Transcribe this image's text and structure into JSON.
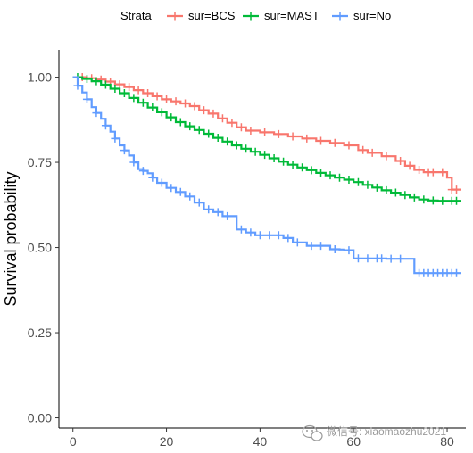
{
  "legend": {
    "title": "Strata"
  },
  "watermark": {
    "text": "微信号: xiaomaozhu2021",
    "icon": "wechat-bubble-icon"
  },
  "chart_data": {
    "type": "line",
    "step": true,
    "title": "",
    "xlabel": "",
    "ylabel": "Survival probability",
    "xlim": [
      -3,
      84
    ],
    "ylim": [
      -0.03,
      1.08
    ],
    "x_ticks": [
      0,
      20,
      40,
      60,
      80
    ],
    "y_ticks": [
      0.0,
      0.25,
      0.5,
      0.75,
      1.0
    ],
    "x_tick_labels": [
      "0",
      "20",
      "40",
      "60",
      "80"
    ],
    "y_tick_labels": [
      "0.00",
      "0.25",
      "0.50",
      "0.75",
      "1.00"
    ],
    "grid": false,
    "legend_position": "top",
    "censor_marks": true,
    "series": [
      {
        "name": "sur=BCS",
        "color": "#F8766D",
        "x": [
          0,
          3,
          5,
          7,
          9,
          11,
          13,
          15,
          17,
          19,
          21,
          23,
          25,
          27,
          29,
          31,
          33,
          35,
          37,
          40,
          43,
          46,
          49,
          52,
          55,
          58,
          61,
          63,
          66,
          69,
          71,
          73,
          75,
          78,
          80,
          81,
          83
        ],
        "y": [
          1.0,
          0.997,
          0.993,
          0.987,
          0.979,
          0.971,
          0.962,
          0.953,
          0.944,
          0.935,
          0.929,
          0.923,
          0.915,
          0.903,
          0.893,
          0.879,
          0.866,
          0.853,
          0.843,
          0.838,
          0.833,
          0.826,
          0.82,
          0.813,
          0.807,
          0.8,
          0.786,
          0.778,
          0.768,
          0.754,
          0.74,
          0.728,
          0.721,
          0.721,
          0.705,
          0.67,
          0.67
        ],
        "censor_x": [
          2,
          4,
          6,
          8,
          10,
          12,
          14,
          16,
          18,
          20,
          22,
          24,
          26,
          28,
          30,
          32,
          34,
          36,
          38,
          41,
          44,
          47,
          50,
          53,
          56,
          59,
          62,
          64,
          67,
          70,
          72,
          74,
          76,
          77,
          79,
          81,
          82
        ]
      },
      {
        "name": "sur=MAST",
        "color": "#00BA38",
        "x": [
          0,
          2,
          4,
          6,
          8,
          10,
          12,
          14,
          16,
          18,
          20,
          22,
          24,
          26,
          28,
          30,
          32,
          34,
          36,
          38,
          40,
          42,
          44,
          46,
          48,
          50,
          52,
          54,
          56,
          58,
          60,
          62,
          64,
          66,
          68,
          70,
          72,
          74,
          76,
          78,
          80,
          83
        ],
        "y": [
          1.0,
          0.995,
          0.988,
          0.978,
          0.966,
          0.953,
          0.939,
          0.925,
          0.911,
          0.897,
          0.882,
          0.868,
          0.856,
          0.845,
          0.834,
          0.822,
          0.811,
          0.8,
          0.79,
          0.781,
          0.772,
          0.762,
          0.752,
          0.743,
          0.735,
          0.727,
          0.719,
          0.712,
          0.705,
          0.699,
          0.692,
          0.684,
          0.676,
          0.668,
          0.661,
          0.654,
          0.647,
          0.641,
          0.638,
          0.637,
          0.637,
          0.637
        ],
        "censor_x": [
          1,
          3,
          5,
          7,
          9,
          11,
          13,
          15,
          17,
          19,
          21,
          23,
          25,
          27,
          29,
          31,
          33,
          35,
          37,
          39,
          41,
          43,
          45,
          47,
          49,
          51,
          53,
          55,
          57,
          59,
          61,
          63,
          65,
          67,
          69,
          71,
          73,
          75,
          77,
          79,
          81,
          82
        ]
      },
      {
        "name": "sur=No",
        "color": "#619CFF",
        "x": [
          0,
          1,
          2,
          3,
          4,
          5,
          6,
          7,
          8,
          9,
          10,
          11,
          12,
          13,
          14,
          15,
          16,
          17,
          18,
          20,
          22,
          24,
          26,
          28,
          30,
          32,
          35,
          37,
          39,
          45,
          47,
          50,
          55,
          57,
          58,
          60,
          64,
          67,
          72,
          73,
          83
        ],
        "y": [
          1.0,
          0.975,
          0.955,
          0.935,
          0.912,
          0.895,
          0.878,
          0.858,
          0.84,
          0.82,
          0.8,
          0.785,
          0.77,
          0.75,
          0.73,
          0.725,
          0.718,
          0.705,
          0.69,
          0.675,
          0.663,
          0.65,
          0.632,
          0.612,
          0.604,
          0.592,
          0.553,
          0.544,
          0.536,
          0.528,
          0.515,
          0.505,
          0.495,
          0.494,
          0.492,
          0.468,
          0.468,
          0.467,
          0.467,
          0.425,
          0.425
        ],
        "censor_x": [
          1,
          3,
          5,
          7,
          9,
          11,
          13,
          15,
          17,
          19,
          21,
          23,
          25,
          27,
          29,
          31,
          33,
          36,
          38,
          40,
          42,
          44,
          46,
          48,
          51,
          53,
          56,
          59,
          61,
          63,
          65,
          66,
          68,
          70,
          74,
          75,
          76,
          77,
          78,
          79,
          80,
          81,
          82
        ]
      }
    ]
  }
}
